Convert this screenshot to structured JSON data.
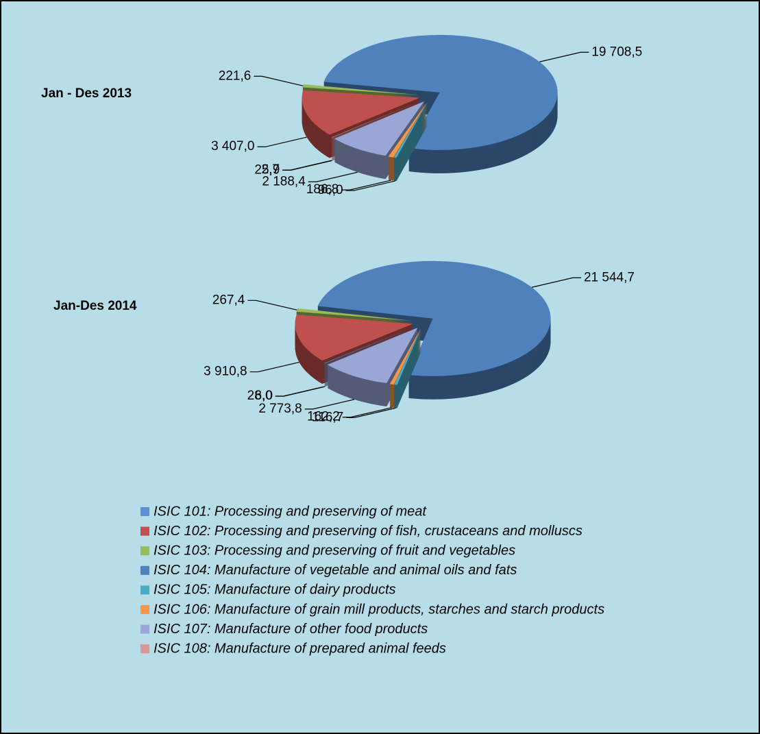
{
  "chart_data": [
    {
      "type": "pie",
      "title": "Jan - Des 2013",
      "values": [
        2.7,
        3407.0,
        221.6,
        19708.5,
        96.0,
        186.8,
        2188.4,
        25.9
      ],
      "value_labels": [
        "2,7",
        "3 407,0",
        "221,6",
        "19 708,5",
        "96,0",
        "186,8",
        "2 188,4",
        "25,9"
      ]
    },
    {
      "type": "pie",
      "title": "Jan-Des 2014",
      "values": [
        28.0,
        3910.8,
        267.4,
        21544.7,
        116.7,
        162.2,
        2773.8,
        6.0
      ],
      "value_labels": [
        "28,0",
        "3 910,8",
        "267,4",
        "21 544,7",
        "116,7",
        "162,2",
        "2 773,8",
        "6,0"
      ]
    }
  ],
  "legend": {
    "labels": [
      "ISIC 101: Processing and preserving of meat",
      "ISIC 102: Processing and preserving of fish, crustaceans and molluscs",
      "ISIC 103: Processing and preserving of fruit and vegetables",
      "ISIC 104: Manufacture of vegetable and animal oils and fats",
      "ISIC 105: Manufacture of dairy products",
      "ISIC 106: Manufacture of grain mill products, starches and starch products",
      "ISIC 107: Manufacture of other food products",
      "ISIC 108: Manufacture of prepared animal feeds"
    ],
    "colors": [
      "#5b8fd6",
      "#c0504d",
      "#9bbb59",
      "#4f81bd",
      "#4bacc6",
      "#f79646",
      "#9aa6d6",
      "#d99694"
    ]
  }
}
